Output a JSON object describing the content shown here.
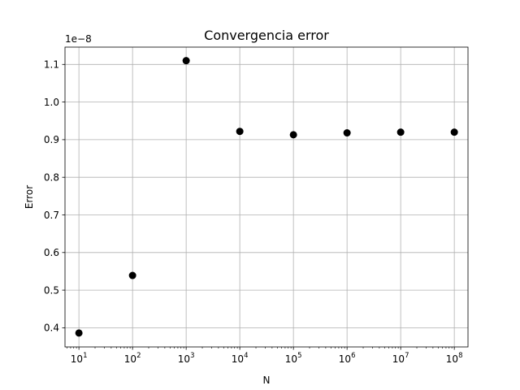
{
  "chart_data": {
    "type": "scatter",
    "title": "Convergencia error",
    "xlabel": "N",
    "ylabel": "Error",
    "x_scale": "log",
    "y_offset_label": "1e−8",
    "x": [
      10,
      100,
      1000,
      10000,
      100000,
      1000000,
      10000000,
      100000000
    ],
    "y": [
      3.86e-09,
      5.39e-09,
      1.11e-08,
      9.22e-09,
      9.13e-09,
      9.18e-09,
      9.2e-09,
      9.2e-09
    ],
    "x_ticks": [
      {
        "exp": 1,
        "base": "10",
        "sup": "1"
      },
      {
        "exp": 2,
        "base": "10",
        "sup": "2"
      },
      {
        "exp": 3,
        "base": "10",
        "sup": "3"
      },
      {
        "exp": 4,
        "base": "10",
        "sup": "4"
      },
      {
        "exp": 5,
        "base": "10",
        "sup": "5"
      },
      {
        "exp": 6,
        "base": "10",
        "sup": "6"
      },
      {
        "exp": 7,
        "base": "10",
        "sup": "7"
      },
      {
        "exp": 8,
        "base": "10",
        "sup": "8"
      }
    ],
    "y_ticks": [
      0.4,
      0.5,
      0.6,
      0.7,
      0.8,
      0.9,
      1.0,
      1.1
    ],
    "y_tick_labels": [
      "0.4",
      "0.5",
      "0.6",
      "0.7",
      "0.8",
      "0.9",
      "1.0",
      "1.1"
    ],
    "xlim": [
      5.5,
      180000000
    ],
    "ylim": [
      0.349,
      1.146
    ],
    "grid": true,
    "marker_color": "#000000"
  }
}
